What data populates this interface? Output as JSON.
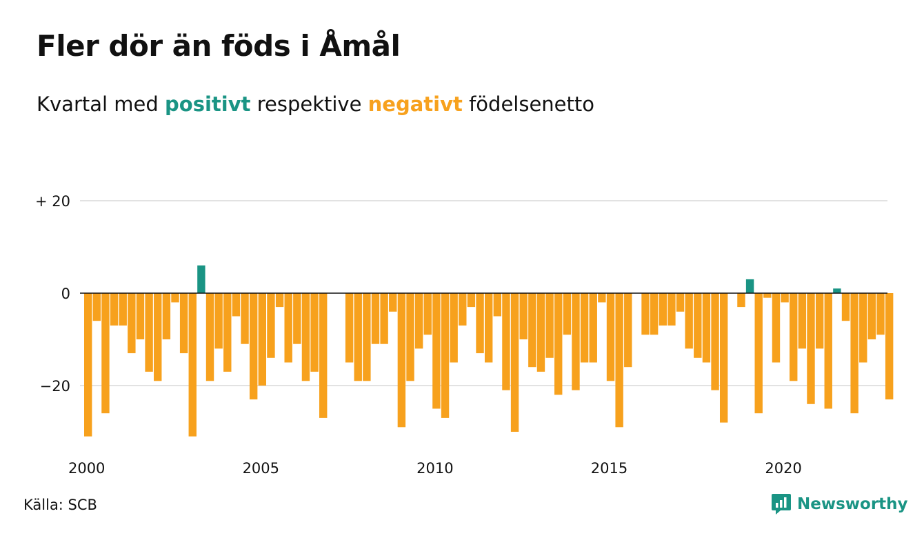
{
  "header": {
    "title": "Fler dör än föds i Åmål",
    "subtitle_start": "Kvartal med ",
    "subtitle_pos": "positivt",
    "subtitle_mid": " respektive ",
    "subtitle_neg": "negativt",
    "subtitle_end": " födelsenetto"
  },
  "footer": {
    "source": "Källa: SCB",
    "brand": "Newsworthy"
  },
  "colors": {
    "positive": "#1a9484",
    "negative": "#f7a11d",
    "grid": "#e2e2e2",
    "zero_line": "#111111",
    "text": "#111111"
  },
  "chart_data": {
    "type": "bar",
    "title": "Fler dör än föds i Åmål",
    "subtitle": "Kvartal med positivt respektive negativt födelsenetto",
    "xlabel": "",
    "ylabel": "",
    "x_ticks": [
      "2000",
      "2005",
      "2010",
      "2015",
      "2020"
    ],
    "y_ticks": [
      {
        "value": 20,
        "label": "+ 20"
      },
      {
        "value": 0,
        "label": "0"
      },
      {
        "value": -20,
        "label": "−20"
      }
    ],
    "ylim": [
      -33,
      22
    ],
    "grid": true,
    "legend": "none",
    "periods_start": "2000 Q1",
    "periods_end": "2023 Q1",
    "values": [
      -31,
      -6,
      -26,
      -7,
      -7,
      -13,
      -10,
      -17,
      -19,
      -10,
      -2,
      -13,
      -31,
      6,
      -19,
      -12,
      -17,
      -5,
      -11,
      -23,
      -20,
      -14,
      -3,
      -15,
      -11,
      -19,
      -17,
      -27,
      null,
      null,
      -15,
      -19,
      -19,
      -11,
      -11,
      -4,
      -29,
      -19,
      -12,
      -9,
      -25,
      -27,
      -15,
      -7,
      -3,
      -13,
      -15,
      -5,
      -21,
      -30,
      -10,
      -16,
      -17,
      -14,
      -22,
      -9,
      -21,
      -15,
      -15,
      -2,
      -19,
      -29,
      -16,
      null,
      -9,
      -9,
      -7,
      -7,
      -4,
      -12,
      -14,
      -15,
      -21,
      -28,
      null,
      -3,
      3,
      -26,
      -1,
      -15,
      -2,
      -19,
      -12,
      -24,
      -12,
      -25,
      1,
      -6,
      -26,
      -15,
      -10,
      -9,
      -23
    ]
  }
}
